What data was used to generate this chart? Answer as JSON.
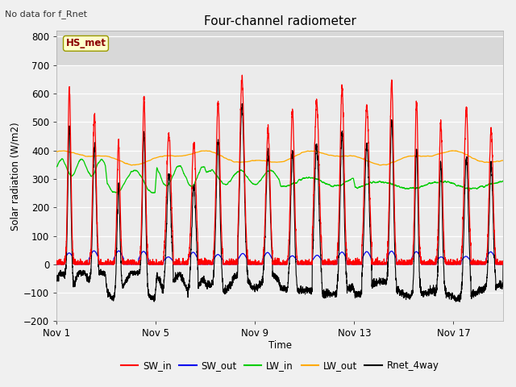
{
  "title": "Four-channel radiometer",
  "top_left_text": "No data for f_Rnet",
  "station_label": "HS_met",
  "ylabel": "Solar radiation (W/m2)",
  "xlabel": "Time",
  "xlim_days": [
    0,
    18
  ],
  "ylim": [
    -200,
    820
  ],
  "yticks": [
    -200,
    -100,
    0,
    100,
    200,
    300,
    400,
    500,
    600,
    700,
    800
  ],
  "xtick_labels": [
    "Nov 1",
    "Nov 5",
    "Nov 9",
    "Nov 13",
    "Nov 17"
  ],
  "xtick_positions": [
    0,
    4,
    8,
    12,
    16
  ],
  "plot_bg_color": "#ebebeb",
  "upper_bg_color": "#d8d8d8",
  "grid_color": "#ffffff",
  "colors": {
    "SW_in": "#ff0000",
    "SW_out": "#0000ee",
    "LW_in": "#00cc00",
    "LW_out": "#ffaa00",
    "Rnet_4way": "#000000"
  },
  "legend": [
    "SW_in",
    "SW_out",
    "LW_in",
    "LW_out",
    "Rnet_4way"
  ],
  "figsize": [
    6.4,
    4.8
  ],
  "dpi": 100
}
